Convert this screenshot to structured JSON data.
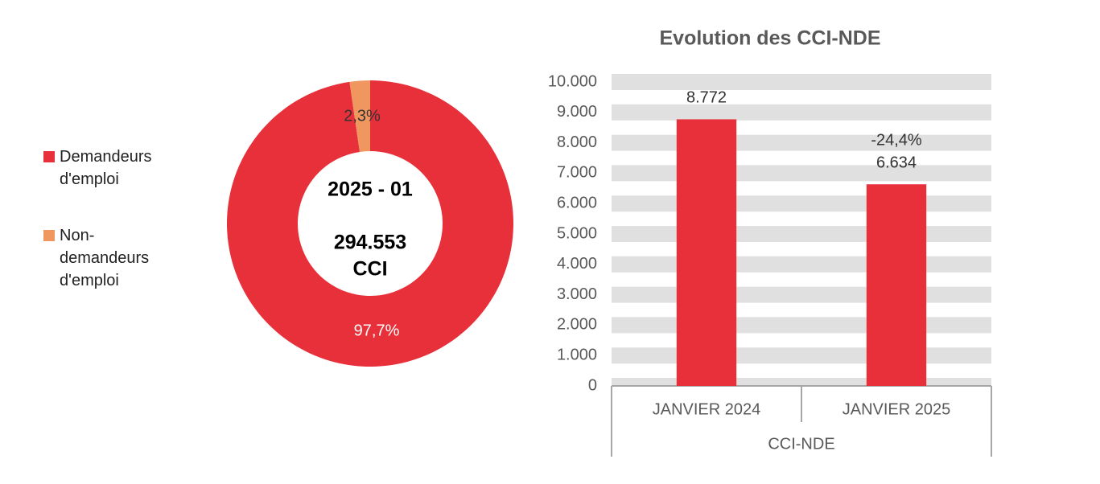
{
  "chart_data": [
    {
      "type": "pie",
      "series": [
        {
          "name": "Demandeurs d'emploi",
          "color": "#e8303a"
        },
        {
          "name": "Non-demandeurs d'emploi",
          "color": "#f0975f"
        }
      ],
      "values": [
        97.7,
        2.3
      ],
      "value_labels": [
        "97,7%",
        "2,3%"
      ],
      "center_texts": [
        "2025 - 01",
        "294.553",
        "CCI"
      ]
    },
    {
      "type": "bar",
      "title": "Evolution des CCI-NDE",
      "categories": [
        "JANVIER 2024",
        "JANVIER 2025"
      ],
      "group_label": "CCI-NDE",
      "values": [
        8772,
        6634
      ],
      "value_labels": [
        "8.772",
        "6.634"
      ],
      "annotations": [
        null,
        "-24,4%"
      ],
      "color": "#e8303a",
      "ylim": [
        0,
        10000
      ],
      "yticks": [
        0,
        {
          "value": 1000,
          "label": "1.000"
        },
        {
          "value": 2000,
          "label": "2.000"
        },
        {
          "value": 3000,
          "label": "3.000"
        },
        {
          "value": 4000,
          "label": "4.000"
        },
        {
          "value": 5000,
          "label": "5.000"
        },
        {
          "value": 6000,
          "label": "6.000"
        },
        {
          "value": 7000,
          "label": "7.000"
        },
        {
          "value": 8000,
          "label": "8.000"
        },
        {
          "value": 9000,
          "label": "9.000"
        },
        {
          "value": 10000,
          "label": "10.000"
        }
      ],
      "grid": true
    }
  ]
}
